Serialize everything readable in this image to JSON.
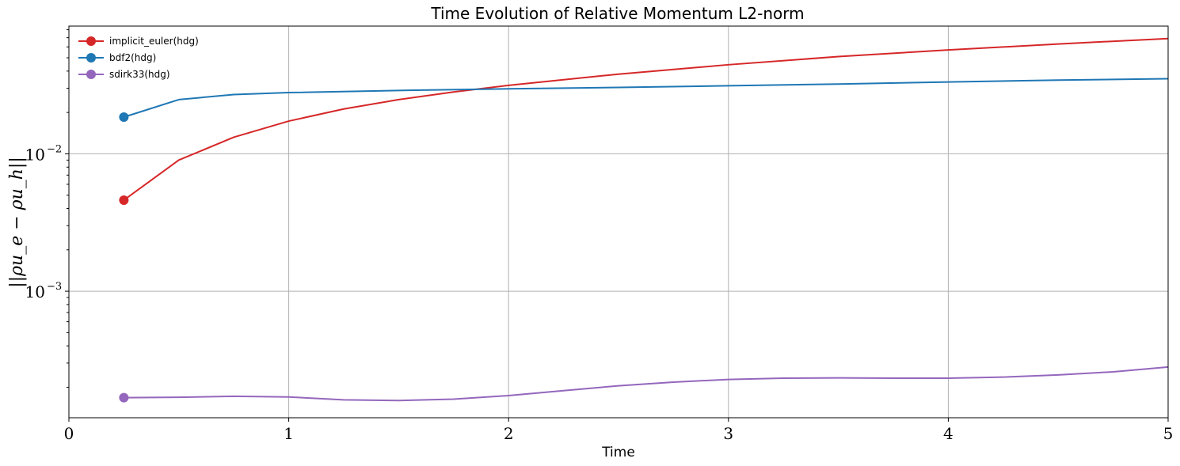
{
  "chart_data": {
    "type": "line",
    "title": "Time Evolution of Relative Momentum L2-norm",
    "xlabel": "Time",
    "ylabel": "||ρu_e − ρu_h||",
    "xlim": [
      0,
      5
    ],
    "ylim": [
      0.00012,
      0.085
    ],
    "yscale": "log",
    "grid": true,
    "legend_position": "top-left",
    "x_ticks": [
      "0",
      "1",
      "2",
      "3",
      "4",
      "5"
    ],
    "x_tick_values": [
      0,
      1,
      2,
      3,
      4,
      5
    ],
    "y_ticks": [
      {
        "base": "10",
        "exp": "−2",
        "value": 0.01
      },
      {
        "base": "10",
        "exp": "−3",
        "value": 0.001
      }
    ],
    "series": [
      {
        "name": "implicit_euler(hdg)",
        "color": "#d62728",
        "x": [
          0.25,
          0.5,
          0.75,
          1.0,
          1.25,
          1.5,
          1.75,
          2.0,
          2.5,
          3.0,
          3.5,
          4.0,
          4.5,
          5.0
        ],
        "values": [
          0.0046,
          0.009,
          0.0132,
          0.0173,
          0.0212,
          0.0248,
          0.0282,
          0.0315,
          0.038,
          0.0445,
          0.051,
          0.057,
          0.063,
          0.069
        ]
      },
      {
        "name": "bdf2(hdg)",
        "color": "#1f77b4",
        "x": [
          0.25,
          0.5,
          0.75,
          1.0,
          1.5,
          2.0,
          2.5,
          3.0,
          3.5,
          4.0,
          4.5,
          5.0
        ],
        "values": [
          0.0185,
          0.0248,
          0.027,
          0.0279,
          0.0289,
          0.0297,
          0.0304,
          0.0313,
          0.0322,
          0.0333,
          0.0344,
          0.0352
        ]
      },
      {
        "name": "sdirk33(hdg)",
        "color": "#9467bd",
        "x": [
          0.25,
          0.5,
          0.75,
          1.0,
          1.25,
          1.5,
          1.75,
          2.0,
          2.25,
          2.5,
          2.75,
          3.0,
          3.25,
          3.5,
          3.75,
          4.0,
          4.25,
          4.5,
          4.75,
          5.0
        ],
        "values": [
          0.000168,
          0.000169,
          0.000172,
          0.00017,
          0.000162,
          0.00016,
          0.000164,
          0.000174,
          0.000189,
          0.000205,
          0.000218,
          0.000228,
          0.000233,
          0.000234,
          0.000233,
          0.000233,
          0.000237,
          0.000246,
          0.000259,
          0.000281
        ]
      }
    ]
  }
}
